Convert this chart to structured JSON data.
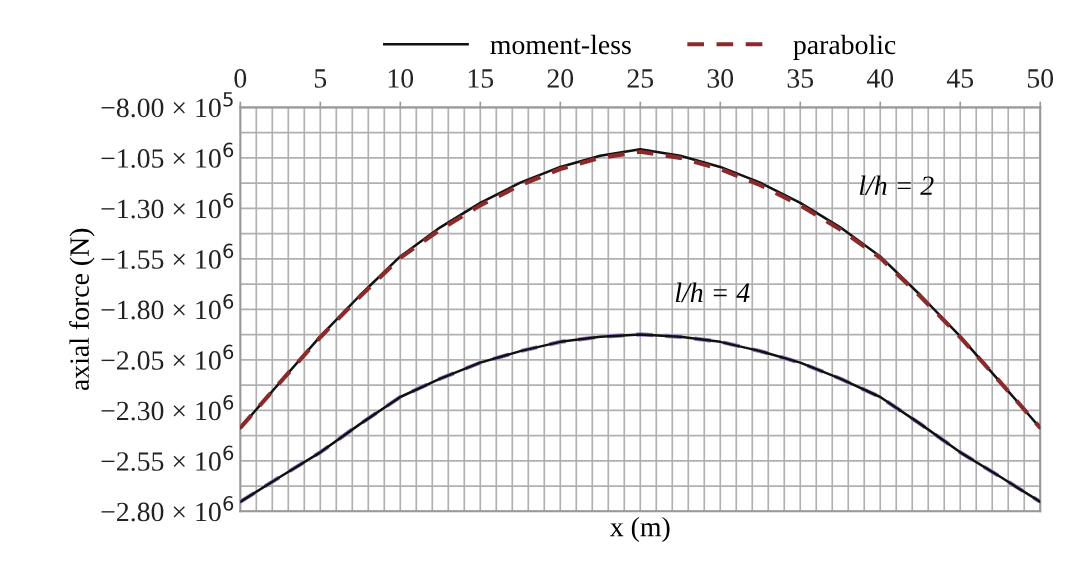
{
  "chart_data": {
    "type": "line",
    "xlabel": "x (m)",
    "ylabel": "axial force (N)",
    "x": [
      0,
      2.5,
      5,
      7.5,
      10,
      12.5,
      15,
      17.5,
      20,
      22.5,
      25,
      27.5,
      30,
      32.5,
      35,
      37.5,
      40,
      42.5,
      45,
      47.5,
      50
    ],
    "series": [
      {
        "name": "moment-less",
        "color": "#111111",
        "line_style": "solid",
        "values": [
          -2387000,
          -2160000,
          -1934000,
          -1729000,
          -1538000,
          -1394000,
          -1273000,
          -1173000,
          -1095000,
          -1040000,
          -1007000,
          -1040000,
          -1095000,
          -1173000,
          -1273000,
          -1394000,
          -1538000,
          -1729000,
          -1934000,
          -2160000,
          -2387000
        ]
      },
      {
        "name": "parabolic",
        "color": "#8b2a2a",
        "line_style": "dashed",
        "values": [
          -2387000,
          -2160000,
          -1938000,
          -1735000,
          -1545000,
          -1405000,
          -1285000,
          -1185000,
          -1105000,
          -1050000,
          -1020000,
          -1050000,
          -1105000,
          -1185000,
          -1285000,
          -1405000,
          -1545000,
          -1735000,
          -1938000,
          -2160000,
          -2387000
        ]
      },
      {
        "color": "#9b80c8",
        "line_style": "dashed",
        "values": [
          -2753000,
          -2629000,
          -2508000,
          -2367000,
          -2234000,
          -2143000,
          -2064000,
          -2007000,
          -1961000,
          -1936000,
          -1924000,
          -1936000,
          -1961000,
          -2007000,
          -2064000,
          -2143000,
          -2234000,
          -2367000,
          -2508000,
          -2629000,
          -2753000
        ]
      },
      {
        "color": "#111111",
        "line_style": "solid",
        "values": [
          -2753000,
          -2629000,
          -2508000,
          -2367000,
          -2234000,
          -2143000,
          -2064000,
          -2007000,
          -1961000,
          -1936000,
          -1924000,
          -1936000,
          -1961000,
          -2007000,
          -2064000,
          -2143000,
          -2234000,
          -2367000,
          -2508000,
          -2629000,
          -2753000
        ]
      }
    ],
    "xlim": [
      0,
      50
    ],
    "xticks": [
      0,
      {
        "value": 1,
        "label": null
      },
      {
        "value": 2,
        "label": null
      },
      {
        "value": 3,
        "label": null
      },
      {
        "value": 4,
        "label": null
      },
      5,
      {
        "value": 6,
        "label": null
      },
      {
        "value": 7,
        "label": null
      },
      {
        "value": 8,
        "label": null
      },
      {
        "value": 9,
        "label": null
      },
      10,
      {
        "value": 11,
        "label": null
      },
      {
        "value": 12,
        "label": null
      },
      {
        "value": 13,
        "label": null
      },
      {
        "value": 14,
        "label": null
      },
      15,
      {
        "value": 16,
        "label": null
      },
      {
        "value": 17,
        "label": null
      },
      {
        "value": 18,
        "label": null
      },
      {
        "value": 19,
        "label": null
      },
      20,
      {
        "value": 21,
        "label": null
      },
      {
        "value": 22,
        "label": null
      },
      {
        "value": 23,
        "label": null
      },
      {
        "value": 24,
        "label": null
      },
      25,
      {
        "value": 26,
        "label": null
      },
      {
        "value": 27,
        "label": null
      },
      {
        "value": 28,
        "label": null
      },
      {
        "value": 29,
        "label": null
      },
      30,
      {
        "value": 31,
        "label": null
      },
      {
        "value": 32,
        "label": null
      },
      {
        "value": 33,
        "label": null
      },
      {
        "value": 34,
        "label": null
      },
      35,
      {
        "value": 36,
        "label": null
      },
      {
        "value": 37,
        "label": null
      },
      {
        "value": 38,
        "label": null
      },
      {
        "value": 39,
        "label": null
      },
      40,
      {
        "value": 41,
        "label": null
      },
      {
        "value": 42,
        "label": null
      },
      {
        "value": 43,
        "label": null
      },
      {
        "value": 44,
        "label": null
      },
      45,
      {
        "value": 46,
        "label": null
      },
      {
        "value": 47,
        "label": null
      },
      {
        "value": 48,
        "label": null
      },
      {
        "value": 49,
        "label": null
      },
      50
    ],
    "ylim": [
      -2800000,
      -800000
    ],
    "yticks": [
      {
        "value": -800000,
        "label": "−8.00 × 10$^{5}$"
      },
      {
        "value": -925000,
        "label": null
      },
      {
        "value": -1050000,
        "label": "−1.05 × 10$^{6}$"
      },
      {
        "value": -1175000,
        "label": null
      },
      {
        "value": -1300000,
        "label": "−1.30 × 10$^{6}$"
      },
      {
        "value": -1425000,
        "label": null
      },
      {
        "value": -1550000,
        "label": "−1.55 × 10$^{6}$"
      },
      {
        "value": -1675000,
        "label": null
      },
      {
        "value": -1800000,
        "label": "−1.80 × 10$^{6}$"
      },
      {
        "value": -1925000,
        "label": null
      },
      {
        "value": -2050000,
        "label": "−2.05 × 10$^{6}$"
      },
      {
        "value": -2175000,
        "label": null
      },
      {
        "value": -2300000,
        "label": "−2.30 × 10$^{6}$"
      },
      {
        "value": -2425000,
        "label": null
      },
      {
        "value": -2550000,
        "label": "−2.55 × 10$^{6}$"
      },
      {
        "value": -2675000,
        "label": null
      },
      {
        "value": -2800000,
        "label": "−2.80 × 10$^{6}$"
      }
    ],
    "grid": true,
    "legend": "top",
    "annotations": [
      "l/h = 2",
      "l/h = 4"
    ]
  }
}
